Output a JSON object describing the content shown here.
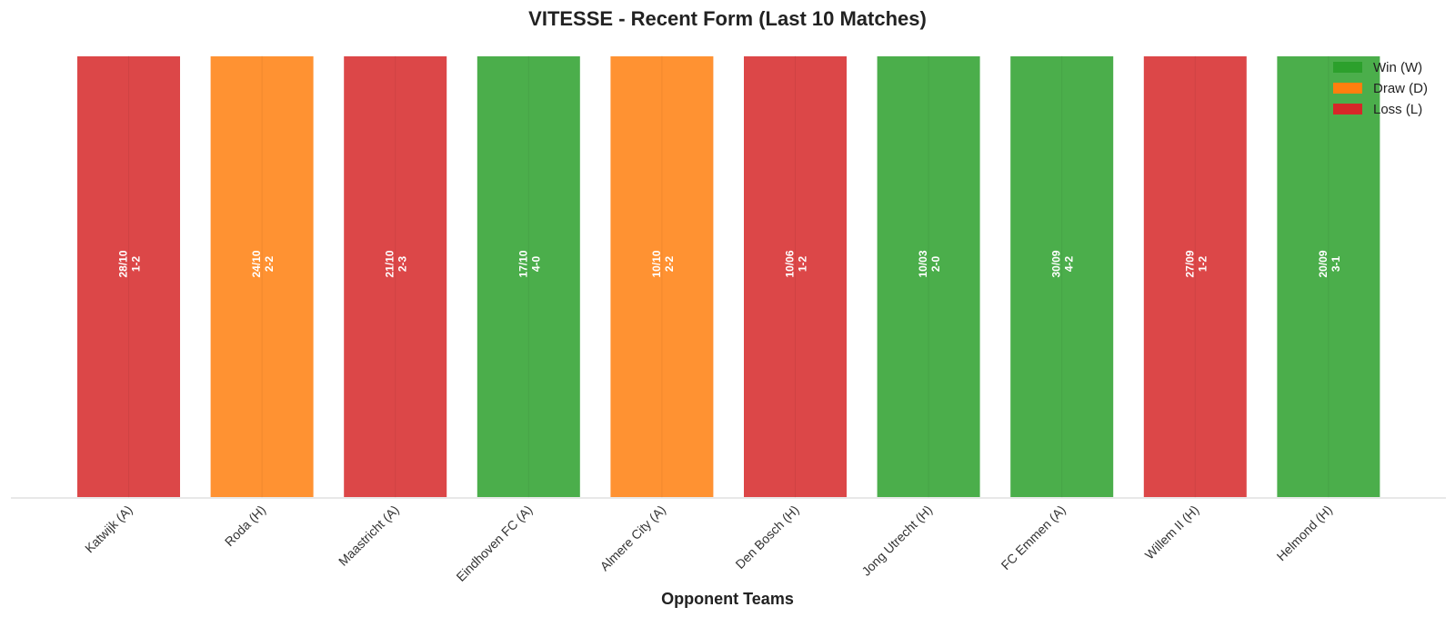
{
  "chart_data": {
    "type": "bar",
    "title": "VITESSE - Recent Form (Last 10 Matches)",
    "xlabel": "Opponent Teams",
    "ylabel": "",
    "grid": false,
    "legend_position": "top-right",
    "categories": [
      "Katwijk (A)",
      "Roda (H)",
      "Maastricht (A)",
      "Eindhoven FC (A)",
      "Almere City (A)",
      "Den Bosch (H)",
      "Jong Utrecht (H)",
      "FC Emmen (A)",
      "Willem II (H)",
      "Helmond (H)"
    ],
    "values": [
      1,
      1,
      1,
      1,
      1,
      1,
      1,
      1,
      1,
      1
    ],
    "results": [
      "L",
      "D",
      "L",
      "W",
      "D",
      "L",
      "W",
      "W",
      "L",
      "W"
    ],
    "dates": [
      "28/10",
      "24/10",
      "21/10",
      "17/10",
      "10/10",
      "10/06",
      "10/03",
      "30/09",
      "27/09",
      "20/09"
    ],
    "scores": [
      "1-2",
      "2-2",
      "2-3",
      "4-0",
      "2-2",
      "1-2",
      "2-0",
      "4-2",
      "1-2",
      "3-1"
    ],
    "ylim": [
      0,
      1
    ],
    "legend": [
      {
        "key": "W",
        "label": "Win (W)",
        "color": "#2ca02c"
      },
      {
        "key": "D",
        "label": "Draw (D)",
        "color": "#ff7f0e"
      },
      {
        "key": "L",
        "label": "Loss (L)",
        "color": "#d62728"
      }
    ]
  }
}
